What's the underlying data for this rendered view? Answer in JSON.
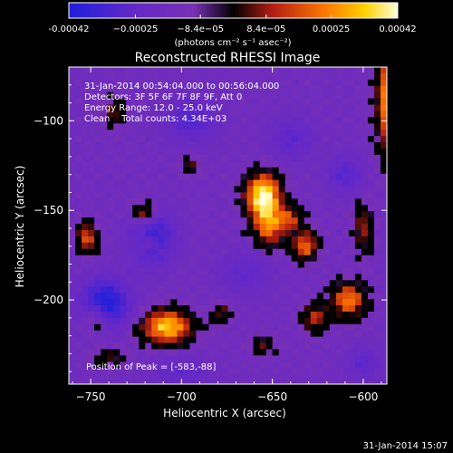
{
  "chart_data": {
    "type": "heatmap",
    "title": "Reconstructed RHESSI Image",
    "xlabel": "Heliocentric X (arcsec)",
    "ylabel": "Heliocentric Y (arcsec)",
    "xlim": [
      -762,
      -587
    ],
    "ylim": [
      -247,
      -70
    ],
    "x_ticks": [
      -750,
      -700,
      -650,
      -600
    ],
    "x_tick_labels": [
      "−750",
      "−700",
      "−650",
      "−600"
    ],
    "y_ticks": [
      -100,
      -150,
      -200
    ],
    "y_tick_labels": [
      "−100",
      "−150",
      "−200"
    ],
    "colorbar": {
      "min": -0.00042,
      "max": 0.00042,
      "ticks": [
        -0.00042,
        -0.00025,
        -8.4e-05,
        8.4e-05,
        0.00025,
        0.00042
      ],
      "tick_labels": [
        "-0.00042",
        "−0.00025",
        "−8.4e−05",
        "8.4e−05",
        "0.00025",
        "0.00042"
      ],
      "unit_label": "(photons cm⁻² s⁻¹ asec⁻²)",
      "colors": [
        "#1e1edc",
        "#6428c8",
        "#7830b4",
        "#000000",
        "#b41e14",
        "#ff7800",
        "#ffd200",
        "#ffffdc"
      ]
    },
    "annotations": [
      "31-Jan-2014 00:54:04.000 to 00:56:04.000",
      "Detectors: 3F 5F 6F 7F 8F 9F, Att 0",
      "Energy Range: 12.0 - 25.0 keV",
      "Clean    Total counts: 4.34E+03"
    ],
    "peak_label": "Position of Peak = [-583,-88]",
    "sources": [
      {
        "x": -583,
        "y": -88,
        "intensity": 1.0,
        "sx": 6,
        "sy": 22
      },
      {
        "x": -655,
        "y": -142,
        "intensity": 0.95,
        "sx": 7,
        "sy": 9
      },
      {
        "x": -652,
        "y": -160,
        "intensity": 0.55,
        "sx": 6,
        "sy": 8
      },
      {
        "x": -708,
        "y": -215,
        "intensity": 0.8,
        "sx": 10,
        "sy": 7
      },
      {
        "x": -720,
        "y": -152,
        "intensity": 0.6,
        "sx": 5,
        "sy": 5
      },
      {
        "x": -718,
        "y": -168,
        "intensity": 0.45,
        "sx": 5,
        "sy": 4
      },
      {
        "x": -752,
        "y": -165,
        "intensity": 0.55,
        "sx": 4,
        "sy": 6
      },
      {
        "x": -747,
        "y": -210,
        "intensity": 0.5,
        "sx": 5,
        "sy": 6
      },
      {
        "x": -640,
        "y": -155,
        "intensity": 0.45,
        "sx": 5,
        "sy": 5
      },
      {
        "x": -632,
        "y": -170,
        "intensity": 0.6,
        "sx": 5,
        "sy": 6
      },
      {
        "x": -608,
        "y": -200,
        "intensity": 0.65,
        "sx": 7,
        "sy": 7
      },
      {
        "x": -627,
        "y": -210,
        "intensity": 0.45,
        "sx": 5,
        "sy": 6
      },
      {
        "x": -678,
        "y": -207,
        "intensity": 0.35,
        "sx": 4,
        "sy": 4
      },
      {
        "x": -737,
        "y": -95,
        "intensity": 0.35,
        "sx": 4,
        "sy": 6
      },
      {
        "x": -695,
        "y": -125,
        "intensity": 0.3,
        "sx": 4,
        "sy": 4
      },
      {
        "x": -600,
        "y": -160,
        "intensity": 0.4,
        "sx": 4,
        "sy": 10
      },
      {
        "x": -655,
        "y": -225,
        "intensity": 0.3,
        "sx": 5,
        "sy": 4
      },
      {
        "x": -740,
        "y": -232,
        "intensity": 0.3,
        "sx": 6,
        "sy": 4
      },
      {
        "x": -716,
        "y": -165,
        "intensity": -0.75,
        "sx": 8,
        "sy": 10
      },
      {
        "x": -742,
        "y": -202,
        "intensity": -0.9,
        "sx": 9,
        "sy": 9
      },
      {
        "x": -695,
        "y": -100,
        "intensity": -0.45,
        "sx": 10,
        "sy": 8
      },
      {
        "x": -640,
        "y": -110,
        "intensity": -0.35,
        "sx": 8,
        "sy": 8
      },
      {
        "x": -610,
        "y": -130,
        "intensity": -0.4,
        "sx": 7,
        "sy": 7
      },
      {
        "x": -665,
        "y": -185,
        "intensity": -0.3,
        "sx": 10,
        "sy": 8
      },
      {
        "x": -700,
        "y": -240,
        "intensity": -0.3,
        "sx": 10,
        "sy": 6
      },
      {
        "x": -600,
        "y": -235,
        "intensity": -0.35,
        "sx": 6,
        "sy": 6
      }
    ],
    "grid": false
  },
  "timestamp": "31-Jan-2014 15:07"
}
